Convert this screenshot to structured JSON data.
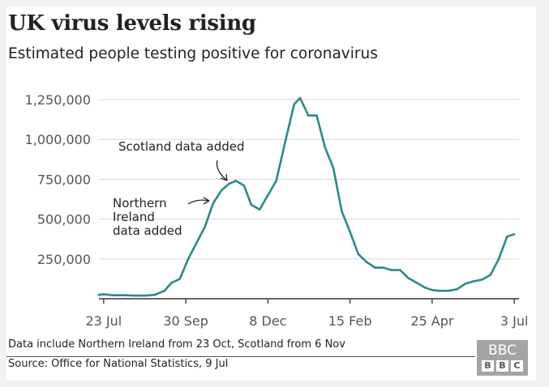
{
  "header": {
    "title": "UK virus levels rising",
    "subtitle": "Estimated people testing positive for coronavirus"
  },
  "footer": {
    "note": "Data include Northern Ireland from 23 Oct, Scotland from 6 Nov",
    "source": "Source: Office for National Statistics, 9 Jul",
    "logo_text": "BBC"
  },
  "colors": {
    "line": "#2a8a8a",
    "grid": "#d8d8d8",
    "axis": "#333333",
    "background": "#ffffff"
  },
  "chart_data": {
    "type": "line",
    "title": "UK virus levels rising",
    "subtitle": "Estimated people testing positive for coronavirus",
    "xlabel": "",
    "ylabel": "",
    "x_ticks": [
      "23 Jul",
      "30 Sep",
      "8 Dec",
      "15 Feb",
      "25 Apr",
      "3 Jul"
    ],
    "y_ticks": [
      250000,
      500000,
      750000,
      1000000,
      1250000
    ],
    "y_tick_labels": [
      "250,000",
      "500,000",
      "750,000",
      "1,000,000",
      "1,250,000"
    ],
    "ylim": [
      0,
      1300000
    ],
    "grid": true,
    "series": [
      {
        "x": [
          "2020-07-19",
          "2020-07-23",
          "2020-07-31",
          "2020-08-09",
          "2020-08-18",
          "2020-08-28",
          "2020-09-04",
          "2020-09-12",
          "2020-09-18",
          "2020-09-25",
          "2020-10-02",
          "2020-10-09",
          "2020-10-16",
          "2020-10-23",
          "2020-10-30",
          "2020-11-05",
          "2020-11-11",
          "2020-11-18",
          "2020-11-24",
          "2020-12-01",
          "2020-12-08",
          "2020-12-15",
          "2020-12-23",
          "2020-12-30",
          "2021-01-04",
          "2021-01-11",
          "2021-01-18",
          "2021-01-25",
          "2021-02-01",
          "2021-02-08",
          "2021-02-15",
          "2021-02-22",
          "2021-03-01",
          "2021-03-08",
          "2021-03-15",
          "2021-03-22",
          "2021-03-29",
          "2021-04-05",
          "2021-04-12",
          "2021-04-19",
          "2021-04-25",
          "2021-05-01",
          "2021-05-09",
          "2021-05-16",
          "2021-05-23",
          "2021-05-30",
          "2021-06-06",
          "2021-06-13",
          "2021-06-20",
          "2021-06-27",
          "2021-07-03"
        ],
        "values": [
          25000,
          28000,
          22000,
          22000,
          20000,
          20000,
          25000,
          50000,
          100000,
          125000,
          250000,
          350000,
          450000,
          600000,
          680000,
          720000,
          740000,
          710000,
          590000,
          560000,
          650000,
          740000,
          1000000,
          1220000,
          1260000,
          1150000,
          1150000,
          950000,
          820000,
          550000,
          420000,
          280000,
          230000,
          195000,
          195000,
          180000,
          180000,
          130000,
          100000,
          70000,
          55000,
          50000,
          50000,
          60000,
          95000,
          110000,
          120000,
          150000,
          250000,
          390000,
          405000
        ]
      }
    ],
    "annotations": [
      {
        "text_lines": [
          "Scotland data added"
        ]
      },
      {
        "text_lines": [
          "Northern",
          "Ireland",
          "data added"
        ]
      }
    ]
  }
}
